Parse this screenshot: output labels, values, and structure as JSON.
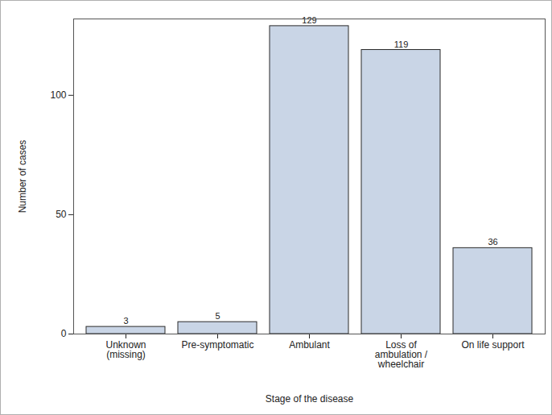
{
  "chart_data": {
    "type": "bar",
    "categories": [
      "Unknown\n(missing)",
      "Pre-symptomatic",
      "Ambulant",
      "Loss of\nambulation /\nwheelchair",
      "On life support"
    ],
    "values": [
      3,
      5,
      129,
      119,
      36
    ],
    "color": "#c9d5e6",
    "xlabel": "Stage of the disease",
    "ylabel": "Number of cases",
    "ylim": [
      0,
      132
    ],
    "yticks": [
      0,
      50,
      100
    ],
    "grid": false,
    "data_labels": true
  }
}
